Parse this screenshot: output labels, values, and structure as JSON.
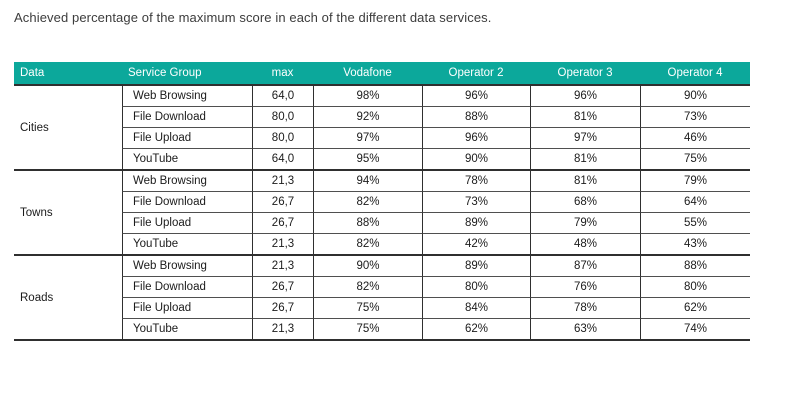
{
  "title": "Achieved percentage of the maximum score in each of the different data services.",
  "colors": {
    "header_bg": "#0ca89b",
    "header_text": "#ffffff",
    "border_dark": "#2f2f2f",
    "row_line": "#4f4f4f",
    "text": "#1b1b1b"
  },
  "table": {
    "columns": [
      "Data",
      "Service Group",
      "max",
      "Vodafone",
      "Operator 2",
      "Operator 3",
      "Operator 4"
    ],
    "groups": [
      {
        "name": "Cities",
        "rows": [
          {
            "service": "Web Browsing",
            "max": "64,0",
            "values": [
              "98%",
              "96%",
              "96%",
              "90%"
            ]
          },
          {
            "service": "File Download",
            "max": "80,0",
            "values": [
              "92%",
              "88%",
              "81%",
              "73%"
            ]
          },
          {
            "service": "File Upload",
            "max": "80,0",
            "values": [
              "97%",
              "96%",
              "97%",
              "46%"
            ]
          },
          {
            "service": "YouTube",
            "max": "64,0",
            "values": [
              "95%",
              "90%",
              "81%",
              "75%"
            ]
          }
        ]
      },
      {
        "name": "Towns",
        "rows": [
          {
            "service": "Web Browsing",
            "max": "21,3",
            "values": [
              "94%",
              "78%",
              "81%",
              "79%"
            ]
          },
          {
            "service": "File Download",
            "max": "26,7",
            "values": [
              "82%",
              "73%",
              "68%",
              "64%"
            ]
          },
          {
            "service": "File Upload",
            "max": "26,7",
            "values": [
              "88%",
              "89%",
              "79%",
              "55%"
            ]
          },
          {
            "service": "YouTube",
            "max": "21,3",
            "values": [
              "82%",
              "42%",
              "48%",
              "43%"
            ]
          }
        ]
      },
      {
        "name": "Roads",
        "rows": [
          {
            "service": "Web Browsing",
            "max": "21,3",
            "values": [
              "90%",
              "89%",
              "87%",
              "88%"
            ]
          },
          {
            "service": "File Download",
            "max": "26,7",
            "values": [
              "82%",
              "80%",
              "76%",
              "80%"
            ]
          },
          {
            "service": "File Upload",
            "max": "26,7",
            "values": [
              "75%",
              "84%",
              "78%",
              "62%"
            ]
          },
          {
            "service": "YouTube",
            "max": "21,3",
            "values": [
              "75%",
              "62%",
              "63%",
              "74%"
            ]
          }
        ]
      }
    ]
  }
}
